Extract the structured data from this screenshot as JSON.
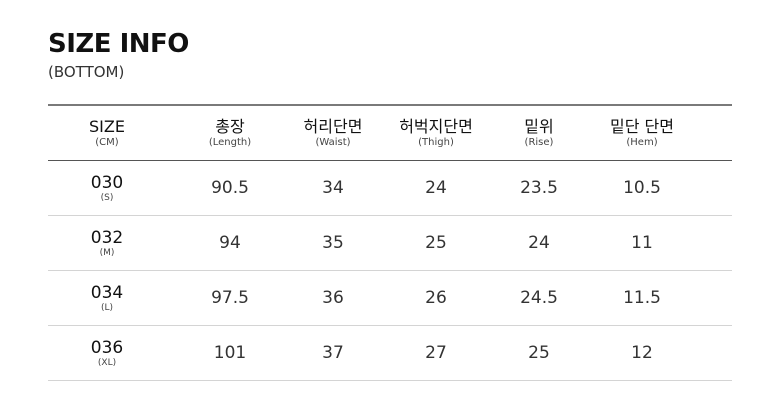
{
  "title": "SIZE INFO",
  "subtitle": "(BOTTOM)",
  "headers": [
    {
      "label": "SIZE",
      "sub": "(CM)"
    },
    {
      "label": "총장",
      "sub": "(Length)"
    },
    {
      "label": "허리단면",
      "sub": "(Waist)"
    },
    {
      "label": "허벅지단면",
      "sub": "(Thigh)"
    },
    {
      "label": "밑위",
      "sub": "(Rise)"
    },
    {
      "label": "밑단 단면",
      "sub": "(Hem)"
    }
  ],
  "rows": [
    {
      "size": "030",
      "sub": "(S)",
      "values": [
        "90.5",
        "34",
        "24",
        "23.5",
        "10.5"
      ]
    },
    {
      "size": "032",
      "sub": "(M)",
      "values": [
        "94",
        "35",
        "25",
        "24",
        "11"
      ]
    },
    {
      "size": "034",
      "sub": "(L)",
      "values": [
        "97.5",
        "36",
        "26",
        "24.5",
        "11.5"
      ]
    },
    {
      "size": "036",
      "sub": "(XL)",
      "values": [
        "101",
        "37",
        "27",
        "25",
        "12"
      ]
    }
  ]
}
